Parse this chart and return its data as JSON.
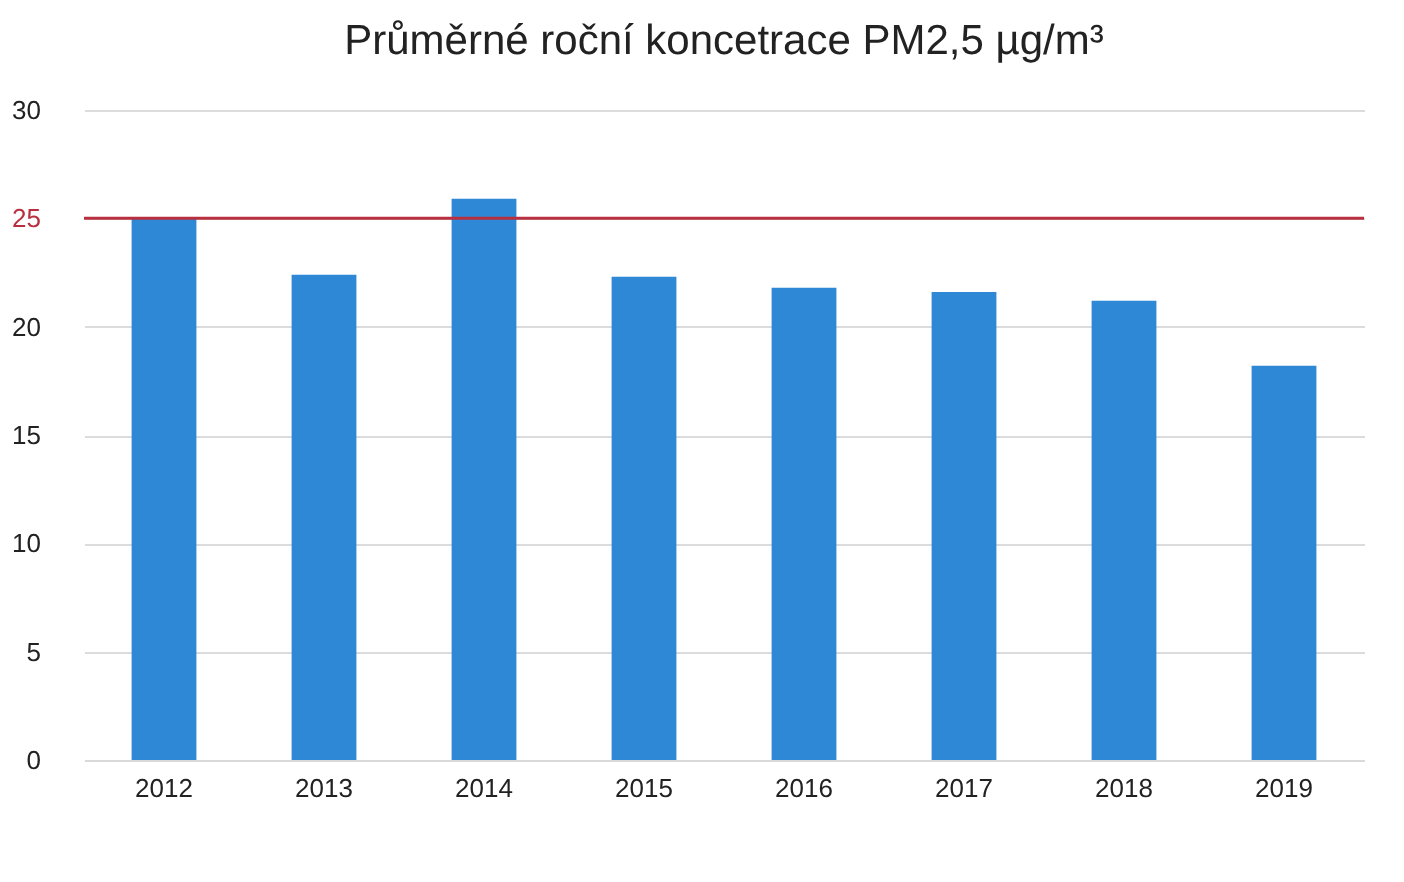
{
  "chart_data": {
    "type": "bar",
    "title": "Průměrné roční koncetrace PM2,5 µg/m³",
    "categories": [
      "2012",
      "2013",
      "2014",
      "2015",
      "2016",
      "2017",
      "2018",
      "2019"
    ],
    "values": [
      25.0,
      22.4,
      25.9,
      22.3,
      21.8,
      21.6,
      21.2,
      18.2
    ],
    "color": "#2f88d6",
    "ylim": [
      0,
      30
    ],
    "yticks": [
      0,
      5,
      10,
      15,
      20,
      25,
      30
    ],
    "grid": "y",
    "ref_lines": [
      {
        "axis": "y",
        "value": 25,
        "color": "#b8303f"
      }
    ]
  }
}
